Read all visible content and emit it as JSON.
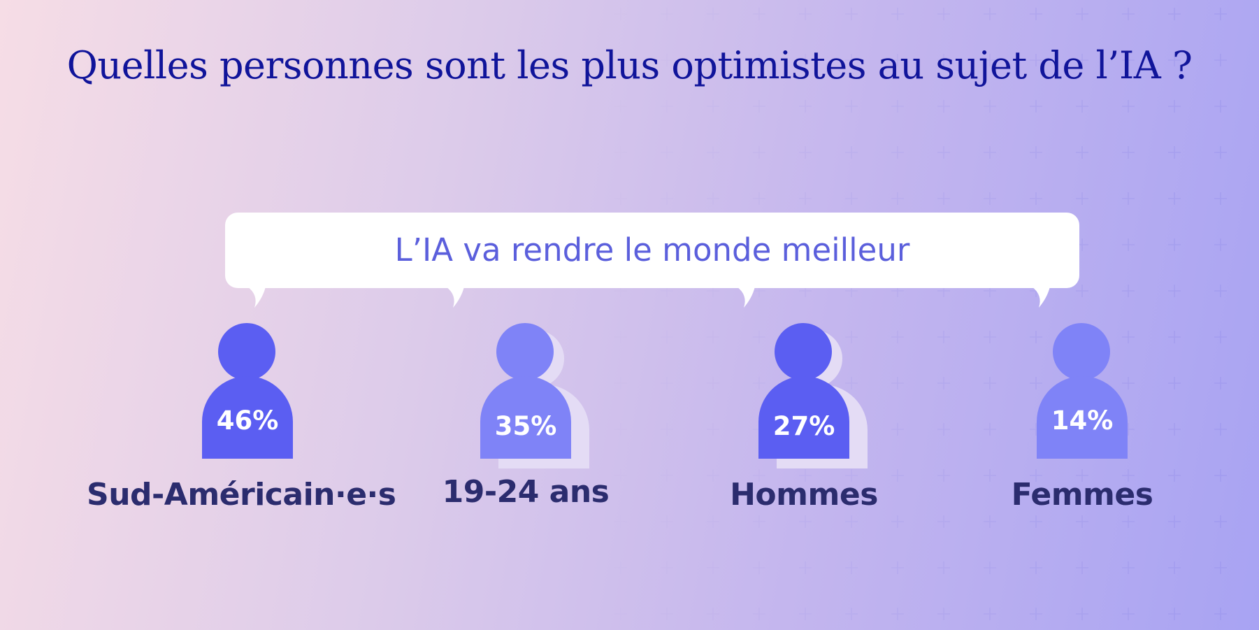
{
  "title": "Quelles personnes sont les plus optimistes au sujet de l’IA ?",
  "statement": "L’IA va rendre le monde meilleur",
  "colors": {
    "title": "#10149a",
    "statement": "#5b5fdc",
    "person_dark": "#5b5ef2",
    "person_light": "#7f83f7",
    "label": "#2b2c6e"
  },
  "groups": [
    {
      "label": "Sud-Américain·e·s",
      "value": "46%"
    },
    {
      "label": "19-24 ans",
      "value": "35%"
    },
    {
      "label": "Hommes",
      "value": "27%"
    },
    {
      "label": "Femmes",
      "value": "14%"
    }
  ]
}
